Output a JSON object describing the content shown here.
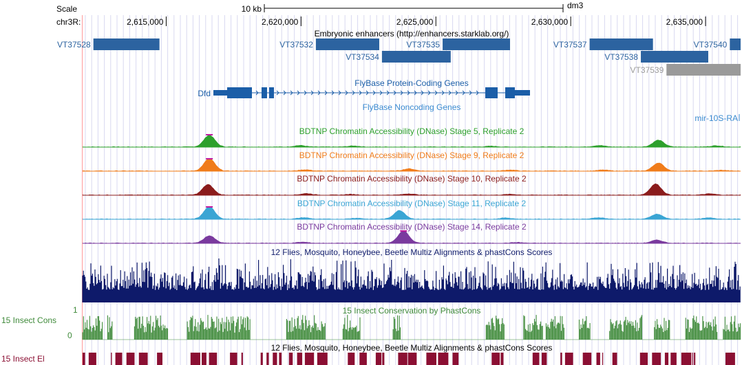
{
  "scale": {
    "label": "Scale",
    "bar_text": "10 kb",
    "assembly": "dm3"
  },
  "ruler": {
    "chrom_label": "chr3R:",
    "ticks": [
      {
        "text": "2,615,000",
        "pos": 2615000
      },
      {
        "text": "2,620,000",
        "pos": 2620000
      },
      {
        "text": "2,625,000",
        "pos": 2625000
      },
      {
        "text": "2,630,000",
        "pos": 2630000
      },
      {
        "text": "2,635,000",
        "pos": 2635000
      }
    ]
  },
  "view": {
    "start": 2611900,
    "end": 2636300
  },
  "colors": {
    "enhancer": "#2c63a0",
    "enhancer_gray": "#9a9a9a",
    "gene": "#1b5ea8",
    "noncoding": "#3a8ad0",
    "stage5": "#2da02c",
    "stage9": "#f07c1a",
    "stage10": "#8b1c1c",
    "stage11": "#3aa5d4",
    "stage14": "#7a3a9e",
    "multiz": "#0e1a6a",
    "phastcons": "#3f8a3a",
    "elements": "#8b0f33",
    "grid": "#d8d8f0",
    "highlight": "#ff9a9a"
  },
  "tracks": {
    "enhancers": {
      "title": "Embryonic enhancers (http://enhancers.starklab.org/)",
      "items": [
        {
          "name": "VT37528",
          "start": 2612300,
          "end": 2614750,
          "row": 0
        },
        {
          "name": "VT37532",
          "start": 2620550,
          "end": 2622900,
          "row": 0
        },
        {
          "name": "VT37535",
          "start": 2625250,
          "end": 2627750,
          "row": 0
        },
        {
          "name": "VT37534",
          "start": 2623000,
          "end": 2625550,
          "row": 1
        },
        {
          "name": "VT37537",
          "start": 2630700,
          "end": 2633050,
          "row": 0
        },
        {
          "name": "VT37538",
          "start": 2632600,
          "end": 2635100,
          "row": 1
        },
        {
          "name": "VT37540",
          "start": 2635900,
          "end": 2636300,
          "row": 0
        },
        {
          "name": "VT37539",
          "start": 2633550,
          "end": 2636300,
          "row": 2,
          "gray": true
        }
      ]
    },
    "genes": {
      "title": "FlyBase Protein-Coding Genes",
      "gene_name": "Dfd"
    },
    "noncoding": {
      "title": "FlyBase Noncoding Genes",
      "gene_name": "mir-10S-RA"
    },
    "dnase": [
      {
        "title": "BDTNP Chromatin Accessibility (DNase) Stage 5, Replicate 2",
        "color_key": "stage5",
        "peaks": [
          [
            2616600,
            0.95
          ],
          [
            2619950,
            0.12
          ],
          [
            2621950,
            0.08
          ],
          [
            2627050,
            0.06
          ],
          [
            2631050,
            0.12
          ],
          [
            2633250,
            0.55
          ],
          [
            2635400,
            0.1
          ]
        ]
      },
      {
        "title": "BDTNP Chromatin Accessibility (DNase) Stage 9, Replicate 2",
        "color_key": "stage9",
        "peaks": [
          [
            2616600,
            1.0
          ],
          [
            2620150,
            0.1
          ],
          [
            2624000,
            0.18
          ],
          [
            2627750,
            0.08
          ],
          [
            2631200,
            0.08
          ],
          [
            2633250,
            0.65
          ],
          [
            2635600,
            0.06
          ]
        ]
      },
      {
        "title": "BDTNP Chromatin Accessibility (DNase) Stage 10, Replicate 2",
        "color_key": "stage10",
        "peaks": [
          [
            2616550,
            0.85
          ],
          [
            2620200,
            0.12
          ],
          [
            2621850,
            0.06
          ],
          [
            2624000,
            0.1
          ],
          [
            2627750,
            0.06
          ],
          [
            2633150,
            0.9
          ],
          [
            2635150,
            0.1
          ]
        ]
      },
      {
        "title": "BDTNP Chromatin Accessibility (DNase) Stage 11, Replicate 2",
        "color_key": "stage11",
        "peaks": [
          [
            2616600,
            1.0
          ],
          [
            2620100,
            0.12
          ],
          [
            2622050,
            0.08
          ],
          [
            2623650,
            0.7
          ],
          [
            2627600,
            0.1
          ],
          [
            2631050,
            0.12
          ],
          [
            2633200,
            0.4
          ],
          [
            2635150,
            0.1
          ]
        ]
      },
      {
        "title": "BDTNP Chromatin Accessibility (DNase) Stage 14, Replicate 2",
        "color_key": "stage14",
        "peaks": [
          [
            2616600,
            0.6
          ],
          [
            2623800,
            1.0
          ],
          [
            2620050,
            0.08
          ],
          [
            2628000,
            0.06
          ],
          [
            2633200,
            0.25
          ]
        ]
      }
    ],
    "multiz": {
      "title": "12 Flies, Mosquito, Honeybee, Beetle Multiz Alignments & phastCons Scores"
    },
    "phastcons": {
      "title": "15 Insect Conservation by PhastCons",
      "label": "15 Insect Cons",
      "max_label": "1",
      "min_label": "0"
    },
    "elements": {
      "title": "12 Flies, Mosquito, Honeybee, Beetle Multiz Alignments & phastCons Scores",
      "label": "15 Insect El"
    }
  }
}
